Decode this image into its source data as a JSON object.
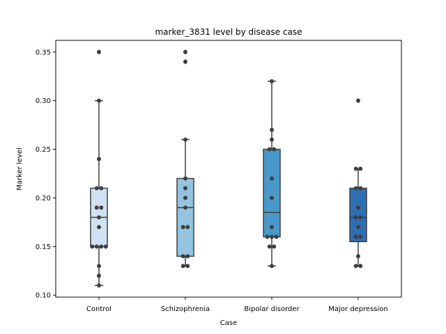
{
  "chart_data": {
    "type": "box",
    "title": "marker_3831 level by disease case",
    "xlabel": "Case",
    "ylabel": "Marker level",
    "ylim": [
      0.098,
      0.362
    ],
    "yticks": [
      0.1,
      0.15,
      0.2,
      0.25,
      0.3,
      0.35
    ],
    "ytick_labels": [
      "0.10",
      "0.15",
      "0.20",
      "0.25",
      "0.30",
      "0.35"
    ],
    "grid": false,
    "categories": [
      "Control",
      "Schizophrenia",
      "Bipolar disorder",
      "Major depression"
    ],
    "colors": [
      "#d0e1f2",
      "#94c4df",
      "#4a98c9",
      "#2e6fb1"
    ],
    "boxes": [
      {
        "name": "Control",
        "q1": 0.15,
        "median": 0.18,
        "q3": 0.21,
        "whisker_low": 0.11,
        "whisker_high": 0.3,
        "outliers": [
          0.35
        ]
      },
      {
        "name": "Schizophrenia",
        "q1": 0.14,
        "median": 0.19,
        "q3": 0.22,
        "whisker_low": 0.13,
        "whisker_high": 0.26,
        "outliers": [
          0.34,
          0.35
        ]
      },
      {
        "name": "Bipolar disorder",
        "q1": 0.16,
        "median": 0.185,
        "q3": 0.25,
        "whisker_low": 0.13,
        "whisker_high": 0.32,
        "outliers": []
      },
      {
        "name": "Major depression",
        "q1": 0.155,
        "median": 0.18,
        "q3": 0.21,
        "whisker_low": 0.13,
        "whisker_high": 0.23,
        "outliers": [
          0.3
        ]
      }
    ],
    "points": [
      [
        0.35,
        0.3,
        0.24,
        0.21,
        0.21,
        0.19,
        0.19,
        0.18,
        0.17,
        0.15,
        0.15,
        0.15,
        0.15,
        0.13,
        0.12,
        0.11
      ],
      [
        0.35,
        0.34,
        0.26,
        0.22,
        0.21,
        0.2,
        0.19,
        0.17,
        0.17,
        0.14,
        0.14,
        0.13,
        0.13
      ],
      [
        0.32,
        0.27,
        0.26,
        0.25,
        0.25,
        0.22,
        0.2,
        0.17,
        0.16,
        0.16,
        0.16,
        0.15,
        0.15,
        0.13
      ],
      [
        0.3,
        0.23,
        0.23,
        0.21,
        0.21,
        0.19,
        0.18,
        0.18,
        0.17,
        0.16,
        0.16,
        0.14,
        0.13,
        0.13
      ]
    ]
  }
}
